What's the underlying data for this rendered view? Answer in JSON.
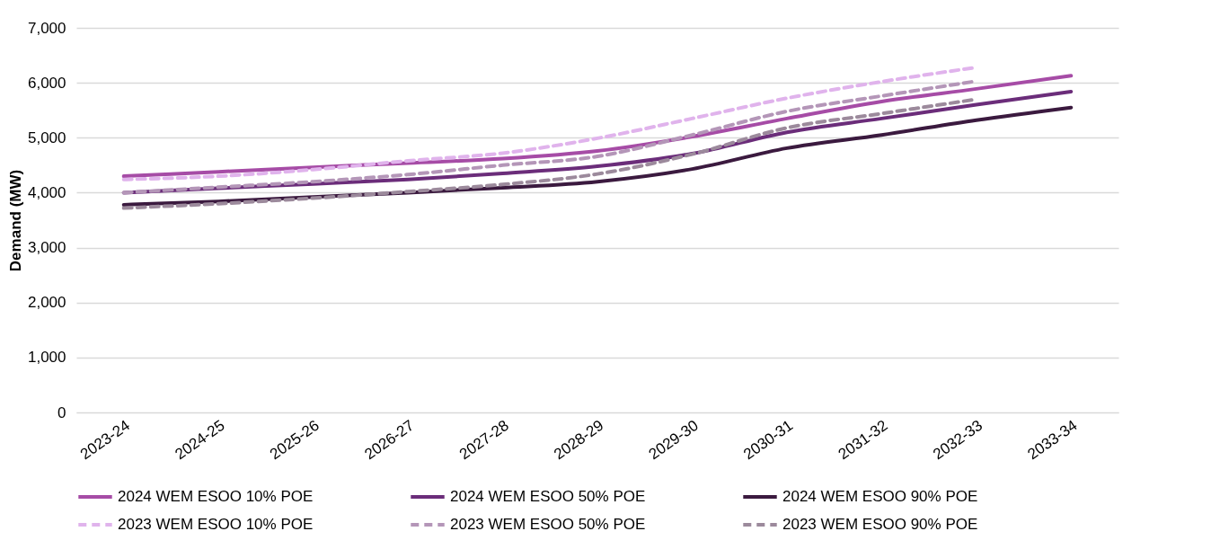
{
  "chart_data": {
    "type": "line",
    "ylabel": "Demand (MW)",
    "categories": [
      "2023-24",
      "2024-25",
      "2025-26",
      "2026-27",
      "2027-28",
      "2028-29",
      "2029-30",
      "2030-31",
      "2031-32",
      "2032-33",
      "2033-34"
    ],
    "ylim": [
      0,
      7000
    ],
    "yticks": [
      {
        "value": 0,
        "label": "0"
      },
      {
        "value": 1000,
        "label": "1,000"
      },
      {
        "value": 2000,
        "label": "2,000"
      },
      {
        "value": 3000,
        "label": "3,000"
      },
      {
        "value": 4000,
        "label": "4,000"
      },
      {
        "value": 5000,
        "label": "5,000"
      },
      {
        "value": 6000,
        "label": "6,000"
      },
      {
        "value": 7000,
        "label": "7,000"
      }
    ],
    "grid": "y",
    "legend": "bottom",
    "marker": "none",
    "series": [
      {
        "name": "2024 WEM ESOO 10% POE",
        "color": "#a64ca6",
        "line_style": "solid",
        "values": [
          4300,
          4380,
          4460,
          4540,
          4620,
          4760,
          5020,
          5350,
          5660,
          5890,
          6130
        ]
      },
      {
        "name": "2024 WEM ESOO 50% POE",
        "color": "#6b2d7a",
        "line_style": "solid",
        "values": [
          4000,
          4080,
          4160,
          4240,
          4350,
          4480,
          4710,
          5100,
          5350,
          5600,
          5840
        ]
      },
      {
        "name": "2024 WEM ESOO 90% POE",
        "color": "#3b1a3f",
        "line_style": "solid",
        "values": [
          3780,
          3840,
          3920,
          4000,
          4090,
          4200,
          4430,
          4810,
          5050,
          5320,
          5550
        ]
      },
      {
        "name": "2023 WEM ESOO 10% POE",
        "color": "#e0b3ec",
        "line_style": "dashed",
        "values": [
          4240,
          4300,
          4420,
          4580,
          4720,
          4990,
          5350,
          5720,
          6020,
          6280,
          null
        ]
      },
      {
        "name": "2023 WEM ESOO 50% POE",
        "color": "#b496b8",
        "line_style": "dashed",
        "values": [
          4000,
          4100,
          4200,
          4330,
          4500,
          4660,
          5050,
          5480,
          5760,
          6030,
          null
        ]
      },
      {
        "name": "2023 WEM ESOO 90% POE",
        "color": "#9c8a9c",
        "line_style": "dashed",
        "values": [
          3720,
          3800,
          3900,
          4020,
          4150,
          4340,
          4700,
          5180,
          5440,
          5700,
          null
        ]
      }
    ]
  }
}
